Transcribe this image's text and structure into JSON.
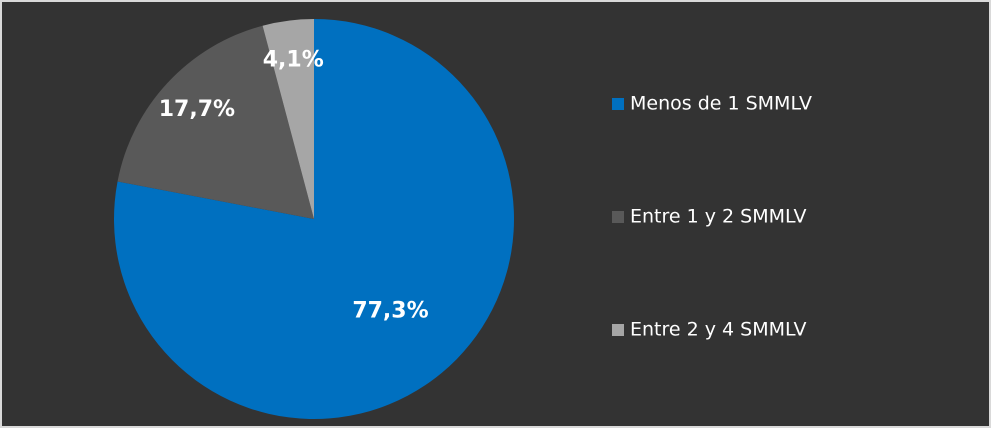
{
  "chart_data": {
    "type": "pie",
    "categories": [
      "Menos de 1 SMMLV",
      "Entre 1 y 2 SMMLV",
      "Entre 2 y 4 SMMLV"
    ],
    "values": [
      77.3,
      17.7,
      4.1
    ],
    "value_labels": [
      "77,3%",
      "17,7%",
      "4,1%"
    ],
    "colors": [
      "#0070c0",
      "#595959",
      "#a6a6a6"
    ],
    "legend": "right"
  }
}
